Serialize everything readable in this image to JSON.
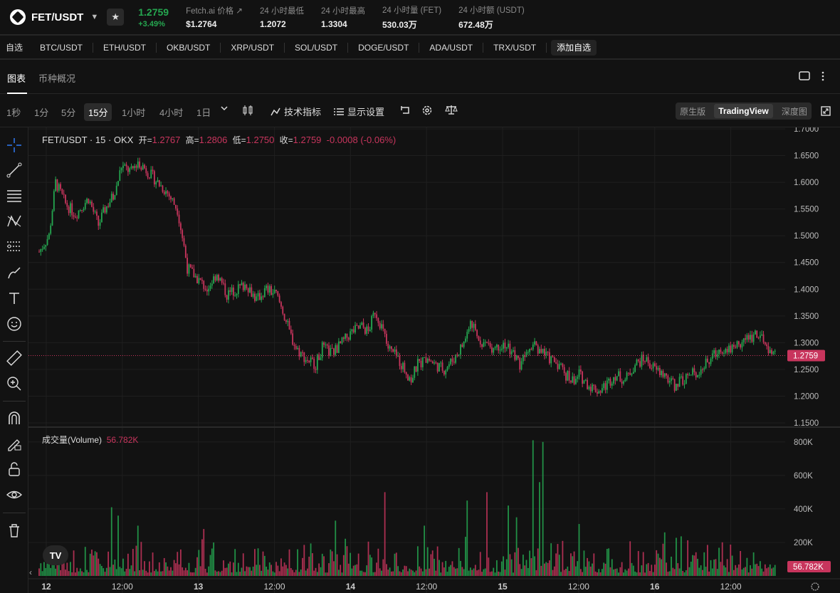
{
  "header": {
    "pair": "FET/USDT",
    "price": "1.2759",
    "change_pct": "+3.49%",
    "stats": [
      {
        "label": "Fetch.ai 价格 ↗",
        "value": "$1.2764"
      },
      {
        "label": "24 小时最低",
        "value": "1.2072"
      },
      {
        "label": "24 小时最高",
        "value": "1.3304"
      },
      {
        "label": "24 小时量 (FET)",
        "value": "530.03万"
      },
      {
        "label": "24 小时额 (USDT)",
        "value": "672.48万"
      }
    ]
  },
  "watchlist": {
    "title": "自选",
    "items": [
      "BTC/USDT",
      "ETH/USDT",
      "OKB/USDT",
      "XRP/USDT",
      "SOL/USDT",
      "DOGE/USDT",
      "ADA/USDT",
      "TRX/USDT"
    ],
    "add_label": "添加自选"
  },
  "tabs": [
    "图表",
    "币种概况"
  ],
  "toolbar": {
    "timeframes": [
      "1秒",
      "1分",
      "5分",
      "15分",
      "1小时",
      "4小时",
      "1日"
    ],
    "active_timeframe": "15分",
    "indicators_label": "技术指标",
    "display_label": "显示设置",
    "views": [
      "原生版",
      "TradingView",
      "深度图"
    ],
    "active_view": "TradingView"
  },
  "legend": {
    "symbol": "FET/USDT · 15 · OKX",
    "open_label": "开=",
    "open": "1.2767",
    "high_label": "高=",
    "high": "1.2806",
    "low_label": "低=",
    "low": "1.2750",
    "close_label": "收=",
    "close": "1.2759",
    "change": "-0.0008 (-0.06%)"
  },
  "volume_legend": {
    "label": "成交量(Volume)",
    "value": "56.782K"
  },
  "tv_logo": "TV",
  "colors": {
    "up": "#25a750",
    "down": "#c8355d",
    "bg": "#121212",
    "grid": "#1f1f1f"
  },
  "chart_data": {
    "type": "candlestick",
    "price_axis": {
      "ticks": [
        "1.7000",
        "1.6500",
        "1.6000",
        "1.5500",
        "1.5000",
        "1.4500",
        "1.4000",
        "1.3500",
        "1.3000",
        "1.2500",
        "1.2000",
        "1.1500"
      ],
      "range": [
        1.15,
        1.7
      ],
      "current": "1.2759"
    },
    "volume_axis": {
      "ticks": [
        "800K",
        "600K",
        "400K",
        "200K"
      ],
      "range": [
        0,
        850000
      ],
      "current": "56.782K"
    },
    "x_ticks": [
      "12",
      "12:00",
      "13",
      "12:00",
      "14",
      "12:00",
      "15",
      "12:00",
      "16",
      "12:00"
    ],
    "close_path": [
      [
        0,
        1.47
      ],
      [
        6,
        1.5
      ],
      [
        10,
        1.6
      ],
      [
        16,
        1.56
      ],
      [
        22,
        1.54
      ],
      [
        30,
        1.57
      ],
      [
        36,
        1.52
      ],
      [
        40,
        1.55
      ],
      [
        46,
        1.58
      ],
      [
        50,
        1.63
      ],
      [
        56,
        1.62
      ],
      [
        60,
        1.64
      ],
      [
        66,
        1.62
      ],
      [
        72,
        1.6
      ],
      [
        78,
        1.58
      ],
      [
        84,
        1.55
      ],
      [
        88,
        1.48
      ],
      [
        90,
        1.44
      ],
      [
        96,
        1.42
      ],
      [
        102,
        1.4
      ],
      [
        108,
        1.43
      ],
      [
        114,
        1.39
      ],
      [
        120,
        1.4
      ],
      [
        126,
        1.41
      ],
      [
        132,
        1.38
      ],
      [
        138,
        1.4
      ],
      [
        144,
        1.39
      ],
      [
        148,
        1.36
      ],
      [
        152,
        1.32
      ],
      [
        156,
        1.29
      ],
      [
        162,
        1.27
      ],
      [
        168,
        1.26
      ],
      [
        172,
        1.29
      ],
      [
        178,
        1.28
      ],
      [
        184,
        1.3
      ],
      [
        190,
        1.32
      ],
      [
        196,
        1.33
      ],
      [
        200,
        1.32
      ],
      [
        204,
        1.36
      ],
      [
        208,
        1.33
      ],
      [
        212,
        1.29
      ],
      [
        218,
        1.27
      ],
      [
        222,
        1.25
      ],
      [
        226,
        1.23
      ],
      [
        230,
        1.26
      ],
      [
        236,
        1.27
      ],
      [
        240,
        1.26
      ],
      [
        246,
        1.25
      ],
      [
        252,
        1.27
      ],
      [
        258,
        1.3
      ],
      [
        262,
        1.34
      ],
      [
        266,
        1.31
      ],
      [
        270,
        1.3
      ],
      [
        276,
        1.29
      ],
      [
        282,
        1.3
      ],
      [
        288,
        1.28
      ],
      [
        292,
        1.26
      ],
      [
        296,
        1.29
      ],
      [
        300,
        1.3
      ],
      [
        306,
        1.28
      ],
      [
        310,
        1.27
      ],
      [
        316,
        1.26
      ],
      [
        320,
        1.24
      ],
      [
        324,
        1.23
      ],
      [
        328,
        1.24
      ],
      [
        334,
        1.22
      ],
      [
        340,
        1.21
      ],
      [
        344,
        1.22
      ],
      [
        350,
        1.24
      ],
      [
        356,
        1.23
      ],
      [
        362,
        1.26
      ],
      [
        368,
        1.27
      ],
      [
        374,
        1.25
      ],
      [
        380,
        1.24
      ],
      [
        386,
        1.22
      ],
      [
        390,
        1.23
      ],
      [
        396,
        1.24
      ],
      [
        402,
        1.25
      ],
      [
        408,
        1.27
      ],
      [
        414,
        1.29
      ],
      [
        420,
        1.29
      ],
      [
        426,
        1.3
      ],
      [
        432,
        1.31
      ],
      [
        436,
        1.32
      ],
      [
        440,
        1.3
      ],
      [
        444,
        1.28
      ],
      [
        447,
        1.276
      ]
    ],
    "total_candles": 448,
    "volume_spikes": {
      "300": 810000,
      "306": 800000,
      "304": 560000,
      "272": 500000,
      "260": 450000,
      "285": 420000,
      "290": 350000,
      "44": 410000,
      "48": 360000,
      "210": 500000,
      "60": 300000,
      "100": 280000,
      "180": 330000,
      "234": 300000,
      "328": 310000,
      "380": 260000
    }
  }
}
